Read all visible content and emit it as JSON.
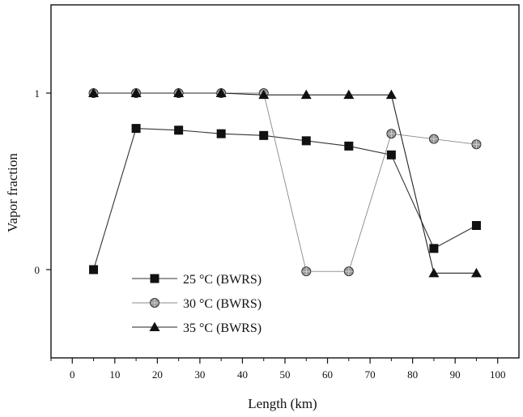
{
  "chart_data": {
    "type": "line",
    "title": "",
    "xlabel": "Length (km)",
    "ylabel": "Vapor fraction",
    "xlim": [
      -5,
      105
    ],
    "ylim": [
      -0.5,
      1.5
    ],
    "x_ticks": [
      0,
      10,
      20,
      30,
      40,
      50,
      60,
      70,
      80,
      90,
      100
    ],
    "y_ticks": [
      0,
      1
    ],
    "x": [
      5,
      15,
      25,
      35,
      45,
      55,
      65,
      75,
      85,
      95
    ],
    "series": [
      {
        "name": "25 °C (BWRS)",
        "marker": "square",
        "line_color": "#333333",
        "values": [
          0.0,
          0.8,
          0.79,
          0.77,
          0.76,
          0.73,
          0.7,
          0.65,
          0.12,
          0.25
        ]
      },
      {
        "name": "30 °C (BWRS)",
        "marker": "circle",
        "line_color": "#888888",
        "values": [
          1.0,
          1.0,
          1.0,
          1.0,
          1.0,
          -0.01,
          -0.01,
          0.77,
          0.74,
          0.71
        ]
      },
      {
        "name": "35 °C (BWRS)",
        "marker": "triangle",
        "line_color": "#222222",
        "values": [
          1.0,
          1.0,
          1.0,
          1.0,
          0.99,
          0.99,
          0.99,
          0.99,
          -0.02,
          -0.02
        ]
      }
    ],
    "legend": {
      "position": "lower-left",
      "items": [
        "25 °C (BWRS)",
        "30 °C (BWRS)",
        "35 °C (BWRS)"
      ]
    },
    "grid": false
  }
}
